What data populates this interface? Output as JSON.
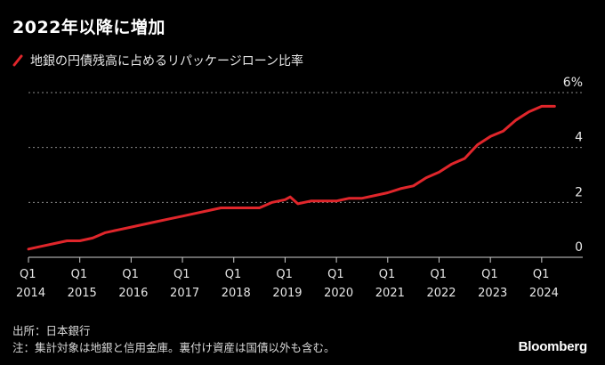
{
  "chart_data": {
    "type": "line",
    "title": "2022年以降に増加",
    "series": [
      {
        "name": "地銀の円債残高に占めるリパッケージローン比率",
        "color": "#e0262b",
        "x": [
          2014.0,
          2014.25,
          2014.5,
          2014.75,
          2015.0,
          2015.25,
          2015.5,
          2015.75,
          2016.0,
          2016.25,
          2016.5,
          2016.75,
          2017.0,
          2017.25,
          2017.5,
          2017.75,
          2018.0,
          2018.25,
          2018.5,
          2018.75,
          2019.0,
          2019.1,
          2019.25,
          2019.5,
          2019.75,
          2020.0,
          2020.25,
          2020.5,
          2020.75,
          2021.0,
          2021.25,
          2021.5,
          2021.75,
          2022.0,
          2022.25,
          2022.5,
          2022.75,
          2023.0,
          2023.25,
          2023.5,
          2023.75,
          2024.0,
          2024.25
        ],
        "values": [
          0.3,
          0.4,
          0.5,
          0.6,
          0.6,
          0.7,
          0.9,
          1.0,
          1.1,
          1.2,
          1.3,
          1.4,
          1.5,
          1.6,
          1.7,
          1.8,
          1.8,
          1.8,
          1.8,
          2.0,
          2.1,
          2.2,
          1.95,
          2.05,
          2.05,
          2.05,
          2.15,
          2.15,
          2.25,
          2.35,
          2.5,
          2.6,
          2.9,
          3.1,
          3.4,
          3.6,
          4.1,
          4.4,
          4.6,
          5.0,
          5.3,
          5.5,
          5.5
        ]
      }
    ],
    "x_ticks": [
      {
        "q": "Q1",
        "year": "2014",
        "x": 2014.0
      },
      {
        "q": "Q1",
        "year": "2015",
        "x": 2015.0
      },
      {
        "q": "Q1",
        "year": "2016",
        "x": 2016.0
      },
      {
        "q": "Q1",
        "year": "2017",
        "x": 2017.0
      },
      {
        "q": "Q1",
        "year": "2018",
        "x": 2018.0
      },
      {
        "q": "Q1",
        "year": "2019",
        "x": 2019.0
      },
      {
        "q": "Q1",
        "year": "2020",
        "x": 2020.0
      },
      {
        "q": "Q1",
        "year": "2021",
        "x": 2021.0
      },
      {
        "q": "Q1",
        "year": "2022",
        "x": 2022.0
      },
      {
        "q": "Q1",
        "year": "2023",
        "x": 2023.0
      },
      {
        "q": "Q1",
        "year": "2024",
        "x": 2024.0
      }
    ],
    "y_ticks": [
      {
        "value": 0,
        "label": "0"
      },
      {
        "value": 2,
        "label": "2"
      },
      {
        "value": 4,
        "label": "4"
      },
      {
        "value": 6,
        "label": "6%"
      }
    ],
    "xlim": [
      2014.0,
      2024.8
    ],
    "ylim": [
      0,
      6
    ],
    "grid": true,
    "legend_position": "top-left"
  },
  "footer": {
    "source": "出所：日本銀行",
    "note": "注：集計対象は地銀と信用金庫。裏付け資産は国債以外も含む。"
  },
  "brand": "Bloomberg"
}
